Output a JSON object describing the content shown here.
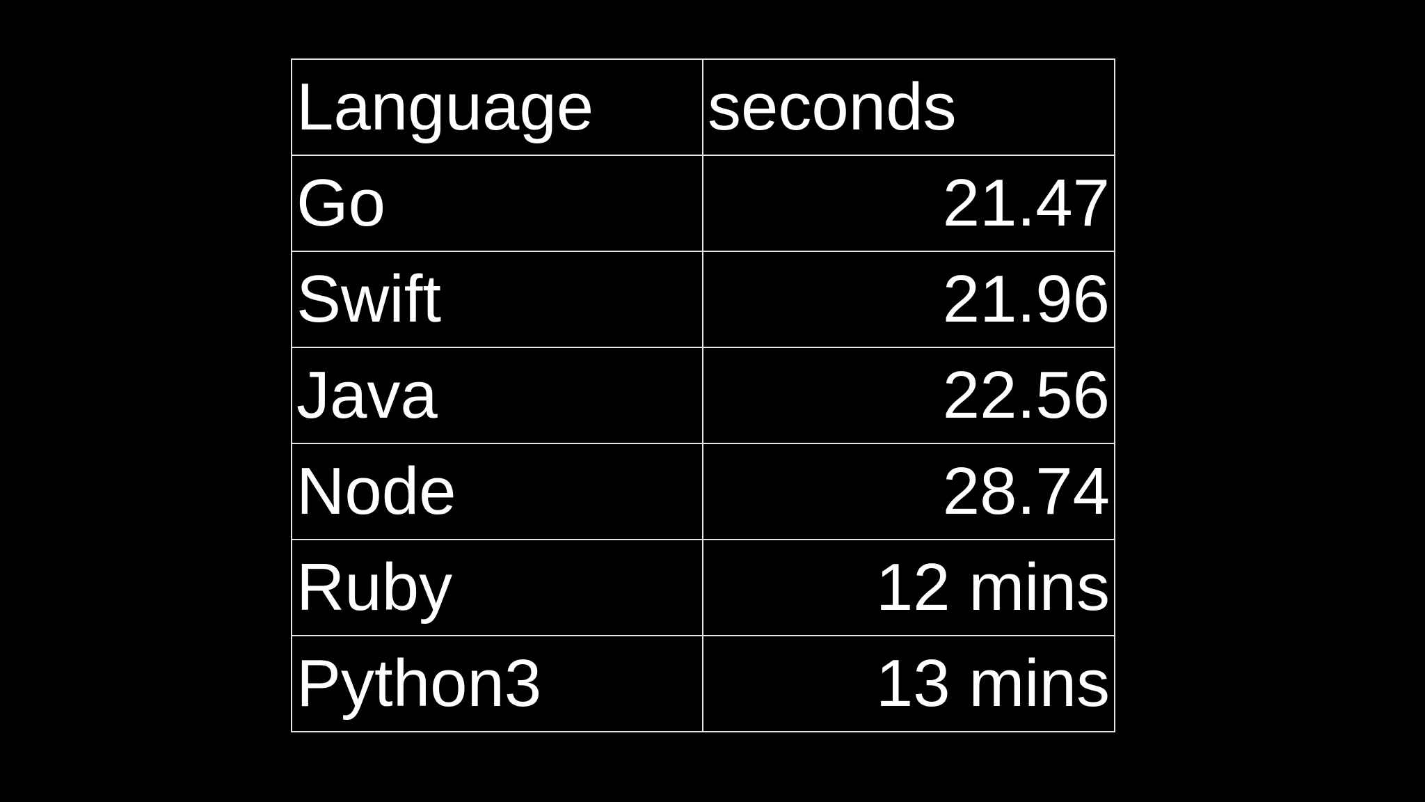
{
  "table": {
    "header": [
      "Language",
      "seconds"
    ],
    "rows": [
      [
        "Go",
        21.47
      ],
      [
        "Swift",
        21.96
      ],
      [
        "Java",
        22.56
      ],
      [
        "Node",
        28.74
      ],
      [
        "Ruby",
        "12 mins"
      ],
      [
        "Python3",
        "13 mins"
      ]
    ]
  }
}
